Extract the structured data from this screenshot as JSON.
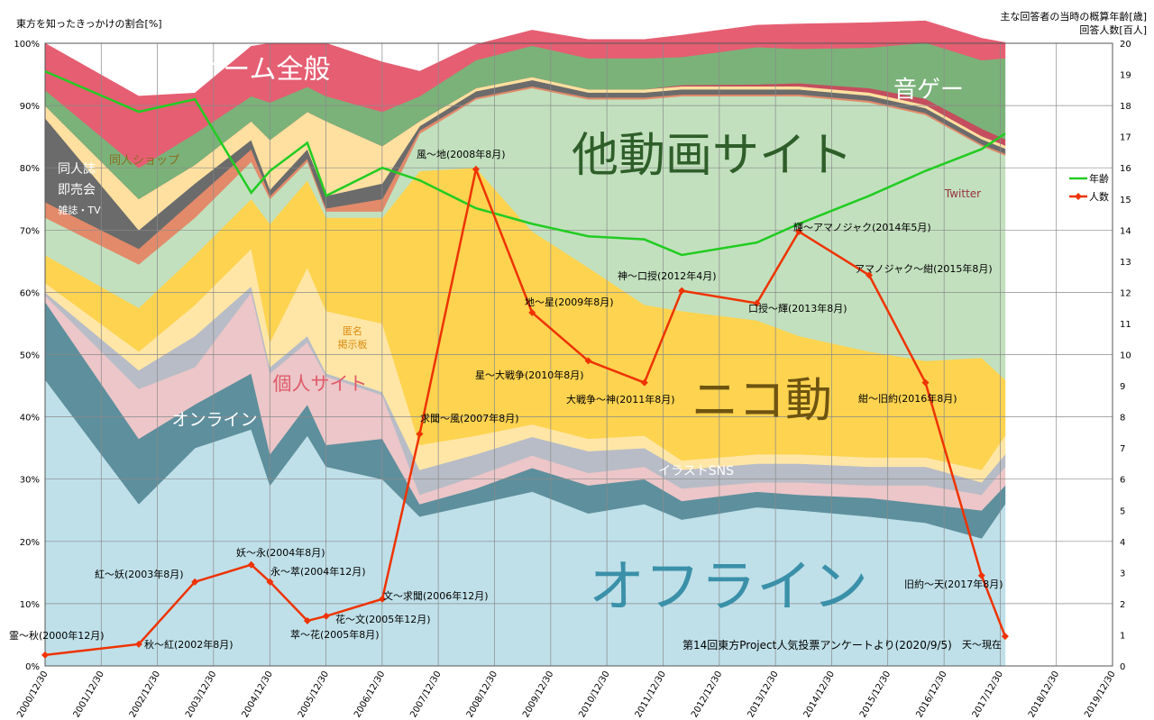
{
  "header": {
    "left_title": "東方を知ったきっかけの割合[%]",
    "right_title_1": "主な回答者の当時の概算年齢[歳]",
    "right_title_2": "回答人数[百人]"
  },
  "chart_data": {
    "type": "area",
    "x_tick_labels": [
      "2000/12/30",
      "2001/12/30",
      "2002/12/30",
      "2003/12/30",
      "2004/12/30",
      "2005/12/30",
      "2006/12/30",
      "2007/12/30",
      "2008/12/30",
      "2009/12/30",
      "2010/12/30",
      "2011/12/30",
      "2012/12/30",
      "2013/12/30",
      "2014/12/30",
      "2015/12/30",
      "2016/12/30",
      "2017/12/30",
      "2018/12/30",
      "2019/12/30"
    ],
    "left_axis": {
      "min": 0,
      "max": 100,
      "step": 10,
      "unit": "%"
    },
    "right_axis": {
      "min": 0,
      "max": 20,
      "step": 1
    },
    "x": [
      "2000-12-30",
      "2002-08-31",
      "2003-08-31",
      "2004-08-31",
      "2004-12-31",
      "2005-08-31",
      "2005-12-31",
      "2006-12-31",
      "2007-08-31",
      "2008-08-31",
      "2009-08-31",
      "2010-08-31",
      "2011-08-31",
      "2012-04-30",
      "2013-08-31",
      "2014-05-31",
      "2015-08-31",
      "2016-08-31",
      "2017-08-31",
      "2018-01-31"
    ],
    "stacked_series": [
      {
        "name": "オフライン",
        "color": "#bfe0e9",
        "values": [
          46,
          26,
          35,
          38,
          29,
          37,
          32,
          30,
          24,
          26,
          28,
          24.5,
          26,
          23.5,
          25.5,
          25,
          24,
          23,
          20.5,
          26
        ]
      },
      {
        "name": "オンライン",
        "color": "#5e8f9d",
        "values": [
          12.5,
          10.5,
          7,
          9,
          5,
          5,
          3.5,
          6.5,
          2,
          2.5,
          3.8,
          4.5,
          4,
          3,
          2.5,
          2.5,
          3,
          3,
          4.5,
          3
        ]
      },
      {
        "name": "",
        "color": "#ecc6c8",
        "values": [
          1,
          8,
          6,
          13,
          13,
          10,
          11,
          7,
          1.5,
          2,
          2,
          2,
          2,
          2,
          1.5,
          2,
          2,
          3,
          2.5,
          3
        ]
      },
      {
        "name": "",
        "color": "#b8bcc6",
        "values": [
          0.5,
          3,
          5,
          1,
          1,
          1,
          0.5,
          0.5,
          4,
          3.5,
          3,
          3.5,
          3,
          3,
          3,
          3,
          3,
          3,
          2,
          2
        ]
      },
      {
        "name": "",
        "color": "#ffe6a6",
        "values": [
          1.5,
          3,
          5,
          6,
          4,
          11,
          10,
          11,
          4,
          3,
          2,
          2,
          2,
          1.5,
          1.5,
          1.5,
          1.5,
          1.5,
          2,
          3
        ]
      },
      {
        "name": "ニコ動",
        "color": "#fdd350",
        "values": [
          4.5,
          7,
          8,
          8,
          19,
          14,
          15,
          17,
          44,
          43,
          31,
          27.5,
          21,
          24,
          21.5,
          19,
          17,
          15.5,
          18,
          9
        ]
      },
      {
        "name": "他動画サイト",
        "color": "#c2e0be",
        "values": [
          6,
          7,
          6,
          6,
          4,
          3,
          1,
          1,
          6,
          11,
          23,
          27,
          33,
          34.5,
          36,
          38.5,
          40,
          39.5,
          34,
          36
        ]
      },
      {
        "name": "雑誌・TV",
        "color": "#e28a6a",
        "values": [
          2.5,
          2.5,
          3,
          2,
          0.5,
          0.5,
          0.5,
          2,
          0.5,
          0.3,
          0.3,
          0.3,
          0.3,
          0.3,
          0.3,
          0.3,
          0.3,
          0.3,
          0.3,
          0.3
        ]
      },
      {
        "name": "同人誌即売会",
        "color": "#6b6b6b",
        "values": [
          13.5,
          3,
          2.5,
          1.5,
          1,
          1.5,
          2,
          2.5,
          0.7,
          1,
          1,
          0.8,
          0.8,
          0.8,
          0.8,
          0.8,
          0.8,
          0.8,
          0.8,
          0.8
        ]
      },
      {
        "name": "同人ショップ",
        "color": "#ffe0a0",
        "values": [
          2,
          5,
          3,
          3,
          8,
          6,
          12,
          6,
          0.8,
          0.5,
          0.5,
          0.5,
          0.5,
          0.5,
          0.5,
          0.5,
          0.5,
          0.5,
          0.5,
          0.5
        ]
      },
      {
        "name": "Twitter",
        "color": "#c44e5e",
        "values": [
          0,
          0,
          0,
          0,
          0,
          0,
          0,
          0,
          0,
          0,
          0,
          0,
          0,
          0.2,
          0.3,
          0.5,
          0.7,
          1,
          1.2,
          1
        ]
      },
      {
        "name": "音ゲー",
        "color": "#7bb279",
        "values": [
          2.5,
          5,
          5,
          4,
          6,
          4,
          4,
          5.5,
          4,
          4.5,
          5,
          5,
          5,
          4.5,
          6,
          5.5,
          6.5,
          9,
          11,
          13
        ]
      },
      {
        "name": "ゲーム全般",
        "color": "#e55e72",
        "values": [
          7.5,
          11.5,
          6.5,
          8,
          9.5,
          7,
          8.5,
          8,
          4,
          2.5,
          2.5,
          3,
          3,
          3.5,
          3.5,
          4,
          4,
          3.5,
          3.5,
          2.5
        ]
      }
    ],
    "line_series": [
      {
        "name": "年齢",
        "color": "#22cc22",
        "x": [
          "2000-12-30",
          "2002-08-31",
          "2003-08-31",
          "2004-08-31",
          "2004-12-31",
          "2005-08-31",
          "2005-12-31",
          "2006-12-31",
          "2007-08-31",
          "2008-08-31",
          "2009-08-31",
          "2010-08-31",
          "2011-08-31",
          "2012-04-30",
          "2013-08-31",
          "2014-05-31",
          "2015-08-31",
          "2016-08-31",
          "2017-08-31",
          "2018-01-31"
        ],
        "values": [
          19.1,
          17.8,
          18.2,
          15.2,
          15.9,
          16.8,
          15.1,
          16.0,
          15.6,
          14.7,
          14.2,
          13.8,
          13.7,
          13.2,
          13.6,
          14.2,
          15.1,
          15.9,
          16.6,
          17.1
        ]
      },
      {
        "name": "人数",
        "color": "#ee3300",
        "x": [
          "2000-12-30",
          "2002-08-31",
          "2003-08-31",
          "2004-08-31",
          "2004-12-31",
          "2005-08-31",
          "2005-12-31",
          "2006-12-31",
          "2007-08-31",
          "2008-08-31",
          "2009-08-31",
          "2010-08-31",
          "2011-08-31",
          "2012-04-30",
          "2013-08-31",
          "2014-05-31",
          "2015-08-31",
          "2016-08-31",
          "2017-08-31",
          "2018-01-31"
        ],
        "values": [
          0.35,
          0.7,
          2.7,
          3.25,
          2.7,
          1.45,
          1.6,
          2.15,
          7.45,
          15.95,
          11.35,
          9.8,
          9.1,
          12.05,
          11.65,
          13.95,
          12.55,
          9.1,
          2.9,
          0.95
        ],
        "labels": [
          "霊～秋(2000年12月)",
          "秋～紅(2002年8月)",
          "紅～妖(2003年8月)",
          "妖～永(2004年8月)",
          "永～萃(2004年12月)",
          "萃～花(2005年8月)",
          "花～文(2005年12月)",
          "文～求聞(2006年12月)",
          "求聞～風(2007年8月)",
          "風～地(2008年8月)",
          "地～星(2009年8月)",
          "星～大戦争(2010年8月)",
          "大戦争～神(2011年8月)",
          "神～口授(2012年4月)",
          "口授～輝(2013年8月)",
          "輝～アマノジャク(2014年5月)",
          "アマノジャク～紺(2015年8月)",
          "紺～旧約(2016年8月)",
          "旧約～天(2017年8月)",
          "天～現在"
        ]
      }
    ],
    "legend": {
      "placement": "right",
      "items": [
        "年齢",
        "人数"
      ]
    },
    "area_labels": [
      {
        "text": "ゲーム全般",
        "color": "#ffffff",
        "size": 30
      },
      {
        "text": "音ゲー",
        "color": "#ffffff",
        "size": 26
      },
      {
        "text": "他動画サイト",
        "color": "#2f5e2a",
        "size": 52
      },
      {
        "text": "同人ショップ",
        "color": "#8a6d20",
        "size": 13
      },
      {
        "text": "同人誌",
        "color": "#ffffff",
        "size": 14
      },
      {
        "text": "即売会",
        "color": "#ffffff",
        "size": 14
      },
      {
        "text": "雑誌・TV",
        "color": "#ffffff",
        "size": 11
      },
      {
        "text": "Twitter",
        "color": "#9a3040",
        "size": 12
      },
      {
        "text": "匿名",
        "color": "#d98a10",
        "size": 11
      },
      {
        "text": "掲示板",
        "color": "#d98a10",
        "size": 11
      },
      {
        "text": "個人サイト",
        "color": "#e05a6a",
        "size": 21
      },
      {
        "text": "オンライン",
        "color": "#ffffff",
        "size": 19
      },
      {
        "text": "ニコ動",
        "color": "#6e5410",
        "size": 52
      },
      {
        "text": "イラストSNS",
        "color": "#ffffff",
        "size": 14
      },
      {
        "text": "オフライン",
        "color": "#3a90a8",
        "size": 62
      }
    ],
    "source_note": "第14回東方Project人気投票アンケートより(2020/9/5)",
    "grid": true
  }
}
